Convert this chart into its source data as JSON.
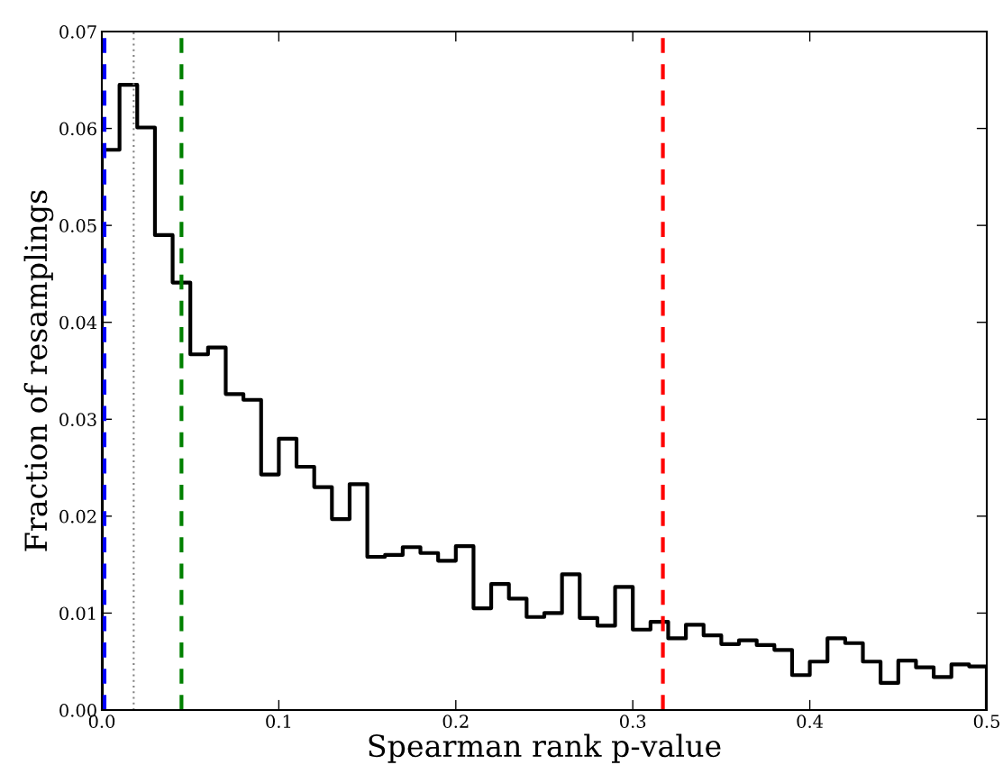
{
  "chart_data": {
    "type": "histogram",
    "xlabel": "Spearman rank p-value",
    "ylabel": "Fraction of resamplings",
    "bins": [
      0.0,
      0.01,
      0.02,
      0.03,
      0.04,
      0.05,
      0.06,
      0.07,
      0.08,
      0.09,
      0.1,
      0.11,
      0.12,
      0.13,
      0.14,
      0.15,
      0.16,
      0.17,
      0.18,
      0.19,
      0.2,
      0.21,
      0.22,
      0.23,
      0.24,
      0.25,
      0.26,
      0.27,
      0.28,
      0.29,
      0.3,
      0.31,
      0.32,
      0.33,
      0.34,
      0.35,
      0.36,
      0.37,
      0.38,
      0.39,
      0.4,
      0.41,
      0.42,
      0.43,
      0.44,
      0.45,
      0.46,
      0.47,
      0.48,
      0.49,
      0.5
    ],
    "values": [
      0.0578,
      0.0645,
      0.0601,
      0.049,
      0.0441,
      0.0367,
      0.0374,
      0.0326,
      0.032,
      0.0243,
      0.028,
      0.0251,
      0.023,
      0.0197,
      0.0233,
      0.0158,
      0.016,
      0.0168,
      0.0162,
      0.0154,
      0.0169,
      0.0105,
      0.013,
      0.0115,
      0.0096,
      0.01,
      0.014,
      0.0095,
      0.0087,
      0.0127,
      0.0083,
      0.0091,
      0.0074,
      0.0088,
      0.0077,
      0.0068,
      0.0072,
      0.0067,
      0.0062,
      0.0036,
      0.005,
      0.0074,
      0.0069,
      0.005,
      0.0028,
      0.0051,
      0.0044,
      0.0034,
      0.0047,
      0.0045
    ],
    "color": "#000000",
    "ref_lines": [
      {
        "axis": "x",
        "value": 0.0015,
        "color": "#0000ff",
        "line_style": "dashed"
      },
      {
        "axis": "x",
        "value": 0.018,
        "color": "#808080",
        "line_style": "dotted"
      },
      {
        "axis": "x",
        "value": 0.045,
        "color": "#008000",
        "line_style": "dashed"
      },
      {
        "axis": "x",
        "value": 0.317,
        "color": "#ff0000",
        "line_style": "dashed"
      }
    ],
    "xlim": [
      0.0,
      0.5
    ],
    "xticks": [
      {
        "value": 0.0,
        "label": "0.0"
      },
      0.1,
      0.2,
      0.3,
      0.4,
      0.5
    ],
    "ylim": [
      0.0,
      0.07
    ],
    "yticks": [
      {
        "value": 0.0,
        "label": "0.00"
      },
      0.01,
      0.02,
      0.03,
      0.04,
      0.05,
      0.06,
      0.07
    ],
    "grid": false
  }
}
